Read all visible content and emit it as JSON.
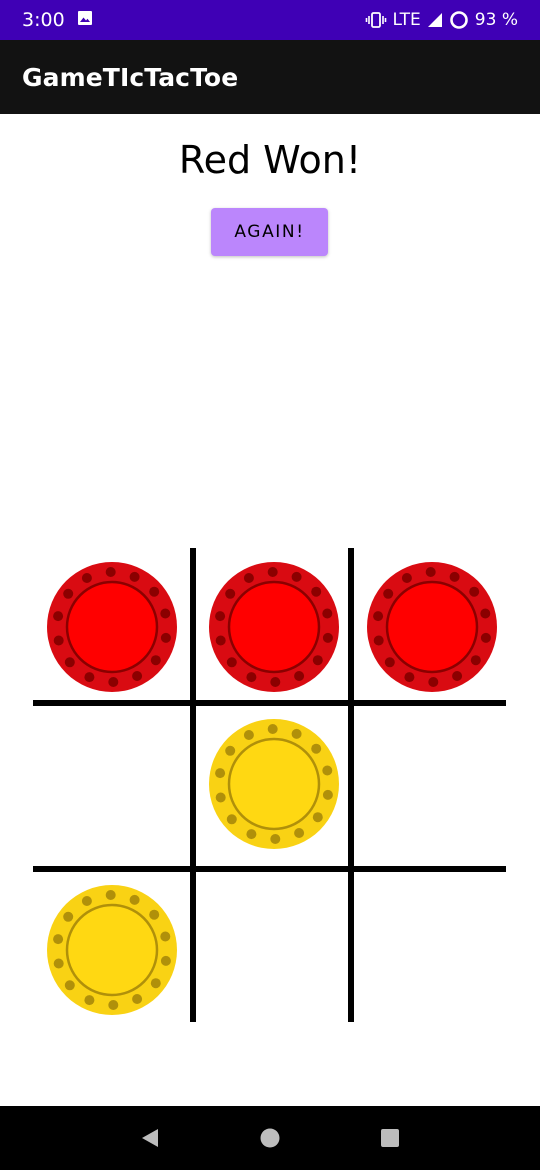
{
  "status_bar": {
    "time": "3:00",
    "network": "LTE",
    "battery_percent": "93 %",
    "icons": [
      "image-icon",
      "vibrate-icon",
      "signal-icon",
      "battery-icon"
    ]
  },
  "app_bar": {
    "title": "GameTIcTacToe"
  },
  "game": {
    "result_text": "Red Won!",
    "again_label": "AGAIN!",
    "board": [
      [
        "red",
        "red",
        "red"
      ],
      [
        "",
        "yellow",
        ""
      ],
      [
        "yellow",
        "",
        ""
      ]
    ],
    "colors": {
      "red_outer": "#d90b12",
      "red_inner": "#ff0000",
      "red_dots": "#8b0000",
      "yellow_outer": "#f9d214",
      "yellow_inner": "#ffd812",
      "yellow_dots": "#b0900a",
      "grid": "#000000",
      "accent": "#bb86fc",
      "status_bar": "#3f00b5",
      "app_bar": "#121212"
    }
  },
  "nav_bar": {
    "icons": [
      "back-icon",
      "home-icon",
      "recents-icon"
    ]
  }
}
